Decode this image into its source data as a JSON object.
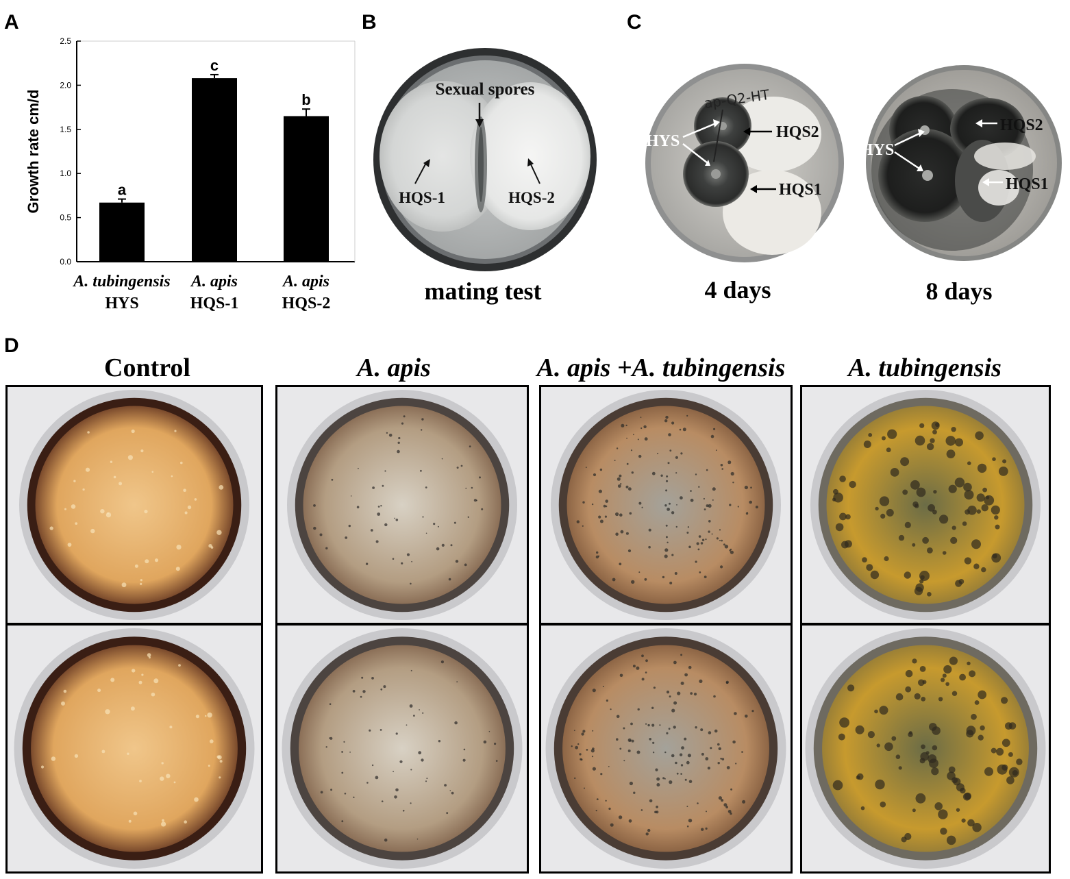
{
  "panels": {
    "A": "A",
    "B": "B",
    "C": "C",
    "D": "D"
  },
  "chart_data": {
    "type": "bar",
    "categories": [
      {
        "species": "A. tubingensis",
        "strain": "HYS"
      },
      {
        "species": "A. apis",
        "strain": "HQS-1"
      },
      {
        "species": "A. apis",
        "strain": "HQS-2"
      }
    ],
    "values": [
      0.67,
      2.08,
      1.65
    ],
    "errors": [
      0.04,
      0.04,
      0.08
    ],
    "significance": [
      "a",
      "c",
      "b"
    ],
    "ylabel": "Growth rate cm/d",
    "ylim": [
      0,
      2.5
    ],
    "yticks": [
      "0.0",
      "0.5",
      "1.0",
      "1.5",
      "2.0",
      "2.5"
    ],
    "ytick_values": [
      0,
      0.5,
      1.0,
      1.5,
      2.0,
      2.5
    ],
    "bar_color": "#000000"
  },
  "panelB": {
    "caption": "mating test",
    "labels": {
      "sexual_spores": "Sexual spores",
      "left": "HQS-1",
      "right": "HQS-2"
    }
  },
  "panelC": {
    "plates": [
      {
        "caption": "4 days",
        "labels": {
          "hys": "HYS",
          "top": "HQS2",
          "bottom": "HQS1",
          "handwriting": "ap-Q2-HT"
        }
      },
      {
        "caption": "8 days",
        "labels": {
          "hys": "HYS",
          "top": "HQS2",
          "bottom": "HQS1"
        }
      }
    ]
  },
  "panelD": {
    "columns": [
      {
        "title": "Control",
        "italic": false
      },
      {
        "title": "A. apis",
        "italic": true
      },
      {
        "title": "A. apis +A. tubingensis",
        "italic": true
      },
      {
        "title": "A. tubingensis",
        "italic": true
      }
    ]
  }
}
